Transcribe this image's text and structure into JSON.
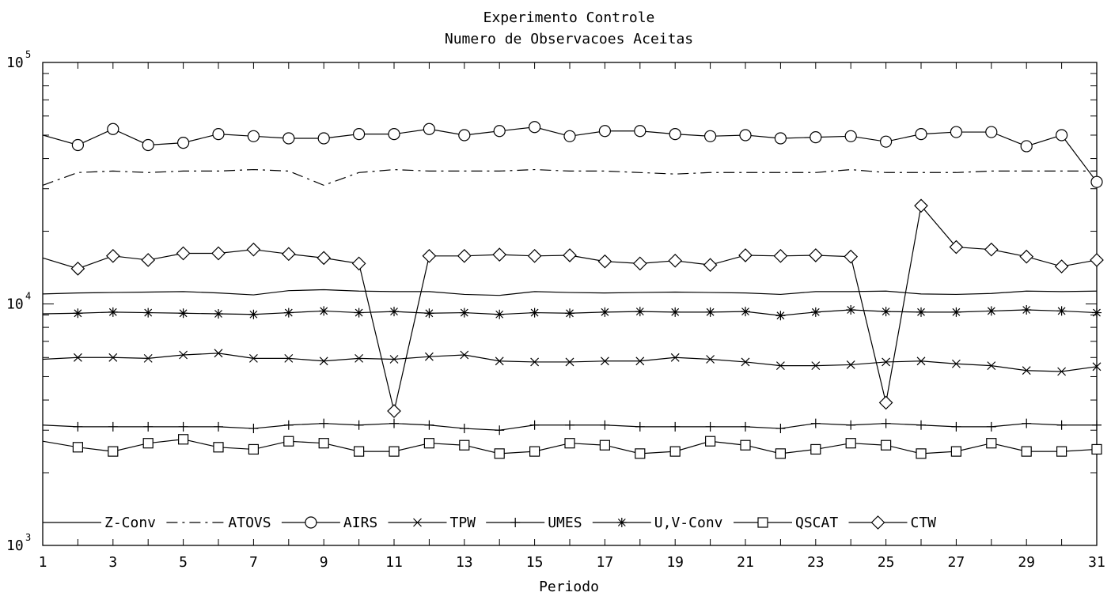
{
  "chart_data": {
    "type": "line",
    "title": "Experimento Controle",
    "subtitle": "Numero de Observacoes Aceitas",
    "xlabel": "Periodo",
    "ylabel": "",
    "xlim": [
      1,
      31
    ],
    "ylim": [
      1000,
      100000
    ],
    "yscale": "log",
    "grid": false,
    "legend_position": "bottom-inside",
    "x_ticks": [
      "1",
      "3",
      "5",
      "7",
      "9",
      "11",
      "13",
      "15",
      "17",
      "19",
      "21",
      "23",
      "25",
      "27",
      "29",
      "31"
    ],
    "y_ticks": [
      {
        "base": "10",
        "exp": "3"
      },
      {
        "base": "10",
        "exp": "4"
      },
      {
        "base": "10",
        "exp": "5"
      }
    ],
    "x": [
      1,
      2,
      3,
      4,
      5,
      6,
      7,
      8,
      9,
      10,
      11,
      12,
      13,
      14,
      15,
      16,
      17,
      18,
      19,
      20,
      21,
      22,
      23,
      24,
      25,
      26,
      27,
      28,
      29,
      30,
      31
    ],
    "series": [
      {
        "name": "Z-Conv",
        "marker": "none",
        "dash": "solid",
        "values": [
          11000,
          11100,
          11150,
          11200,
          11250,
          11100,
          10900,
          11350,
          11450,
          11300,
          11250,
          11250,
          10950,
          10850,
          11250,
          11150,
          11100,
          11150,
          11200,
          11150,
          11100,
          10950,
          11250,
          11250,
          11300,
          11000,
          10950,
          11050,
          11300,
          11250,
          11300
        ]
      },
      {
        "name": "ATOVS",
        "marker": "none",
        "dash": "dashdot",
        "values": [
          31000,
          35000,
          35500,
          35000,
          35500,
          35500,
          36000,
          35500,
          31000,
          35000,
          36000,
          35500,
          35500,
          35500,
          36000,
          35500,
          35500,
          35000,
          34500,
          35000,
          35000,
          35000,
          35000,
          36000,
          35000,
          35000,
          35000,
          35500,
          35500,
          35500,
          35500
        ]
      },
      {
        "name": "AIRS",
        "marker": "circle",
        "dash": "solid",
        "values": [
          50000,
          45500,
          53000,
          45500,
          46500,
          50500,
          49500,
          48500,
          48500,
          50500,
          50500,
          53000,
          50000,
          52000,
          54000,
          49500,
          52000,
          52000,
          50500,
          49500,
          50000,
          48500,
          49000,
          49500,
          47000,
          50500,
          51500,
          51500,
          45000,
          50000,
          32000
        ]
      },
      {
        "name": "TPW",
        "marker": "x",
        "dash": "solid",
        "values": [
          5900,
          6000,
          6000,
          5950,
          6150,
          6250,
          5950,
          5950,
          5800,
          5950,
          5900,
          6050,
          6150,
          5800,
          5750,
          5750,
          5800,
          5800,
          6000,
          5900,
          5750,
          5550,
          5550,
          5600,
          5750,
          5800,
          5650,
          5550,
          5300,
          5250,
          5500
        ]
      },
      {
        "name": "UMES",
        "marker": "plus",
        "dash": "solid",
        "values": [
          3150,
          3100,
          3100,
          3100,
          3100,
          3100,
          3050,
          3150,
          3200,
          3150,
          3200,
          3150,
          3050,
          3000,
          3150,
          3150,
          3150,
          3100,
          3100,
          3100,
          3100,
          3050,
          3200,
          3150,
          3200,
          3150,
          3100,
          3100,
          3200,
          3150,
          3150
        ]
      },
      {
        "name": "U,V-Conv",
        "marker": "asterisk",
        "dash": "solid",
        "values": [
          9100,
          9150,
          9250,
          9200,
          9150,
          9100,
          9050,
          9200,
          9350,
          9200,
          9300,
          9150,
          9200,
          9050,
          9200,
          9150,
          9250,
          9300,
          9250,
          9250,
          9300,
          8950,
          9250,
          9450,
          9300,
          9250,
          9250,
          9350,
          9450,
          9350,
          9200
        ]
      },
      {
        "name": "QSCAT",
        "marker": "square",
        "dash": "solid",
        "values": [
          2700,
          2550,
          2450,
          2650,
          2750,
          2550,
          2500,
          2700,
          2650,
          2450,
          2450,
          2650,
          2600,
          2400,
          2450,
          2650,
          2600,
          2400,
          2450,
          2700,
          2600,
          2400,
          2500,
          2650,
          2600,
          2400,
          2450,
          2650,
          2450,
          2450,
          2500
        ]
      },
      {
        "name": "CTW",
        "marker": "diamond",
        "dash": "solid",
        "values": [
          15500,
          14000,
          15800,
          15200,
          16200,
          16200,
          16800,
          16100,
          15500,
          14700,
          3600,
          15800,
          15800,
          16000,
          15800,
          15900,
          15000,
          14700,
          15100,
          14500,
          15900,
          15800,
          15900,
          15700,
          3900,
          25500,
          17200,
          16800,
          15700,
          14300,
          15200
        ]
      }
    ]
  }
}
